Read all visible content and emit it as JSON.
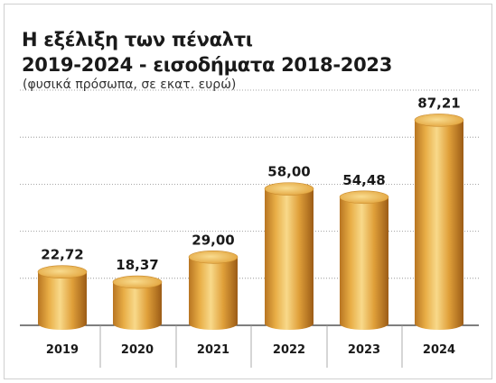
{
  "header": {
    "title_line1": "Η εξέλιξη των πέναλτι",
    "title_line2": "2019-2024 - εισοδήματα 2018-2023",
    "subtitle": "(φυσικά πρόσωπα, σε εκατ. ευρώ)"
  },
  "colors": {
    "bar_light": "#f7d27a",
    "bar_mid": "#e2a33a",
    "bar_dark": "#a8651a",
    "top_cap": "#f2c266",
    "grid": "#666666"
  },
  "chart_data": {
    "type": "bar",
    "title": "Η εξέλιξη των πέναλτι 2019-2024 - εισοδήματα 2018-2023",
    "subtitle": "(φυσικά πρόσωπα, σε εκατ. ευρώ)",
    "categories": [
      "2019",
      "2020",
      "2021",
      "2022",
      "2023",
      "2024"
    ],
    "values": [
      22.72,
      18.37,
      29.0,
      58.0,
      54.48,
      87.21
    ],
    "value_labels": [
      "22,72",
      "18,37",
      "29,00",
      "58,00",
      "54,48",
      "87,21"
    ],
    "ylim": [
      0,
      100
    ],
    "grid": true
  }
}
